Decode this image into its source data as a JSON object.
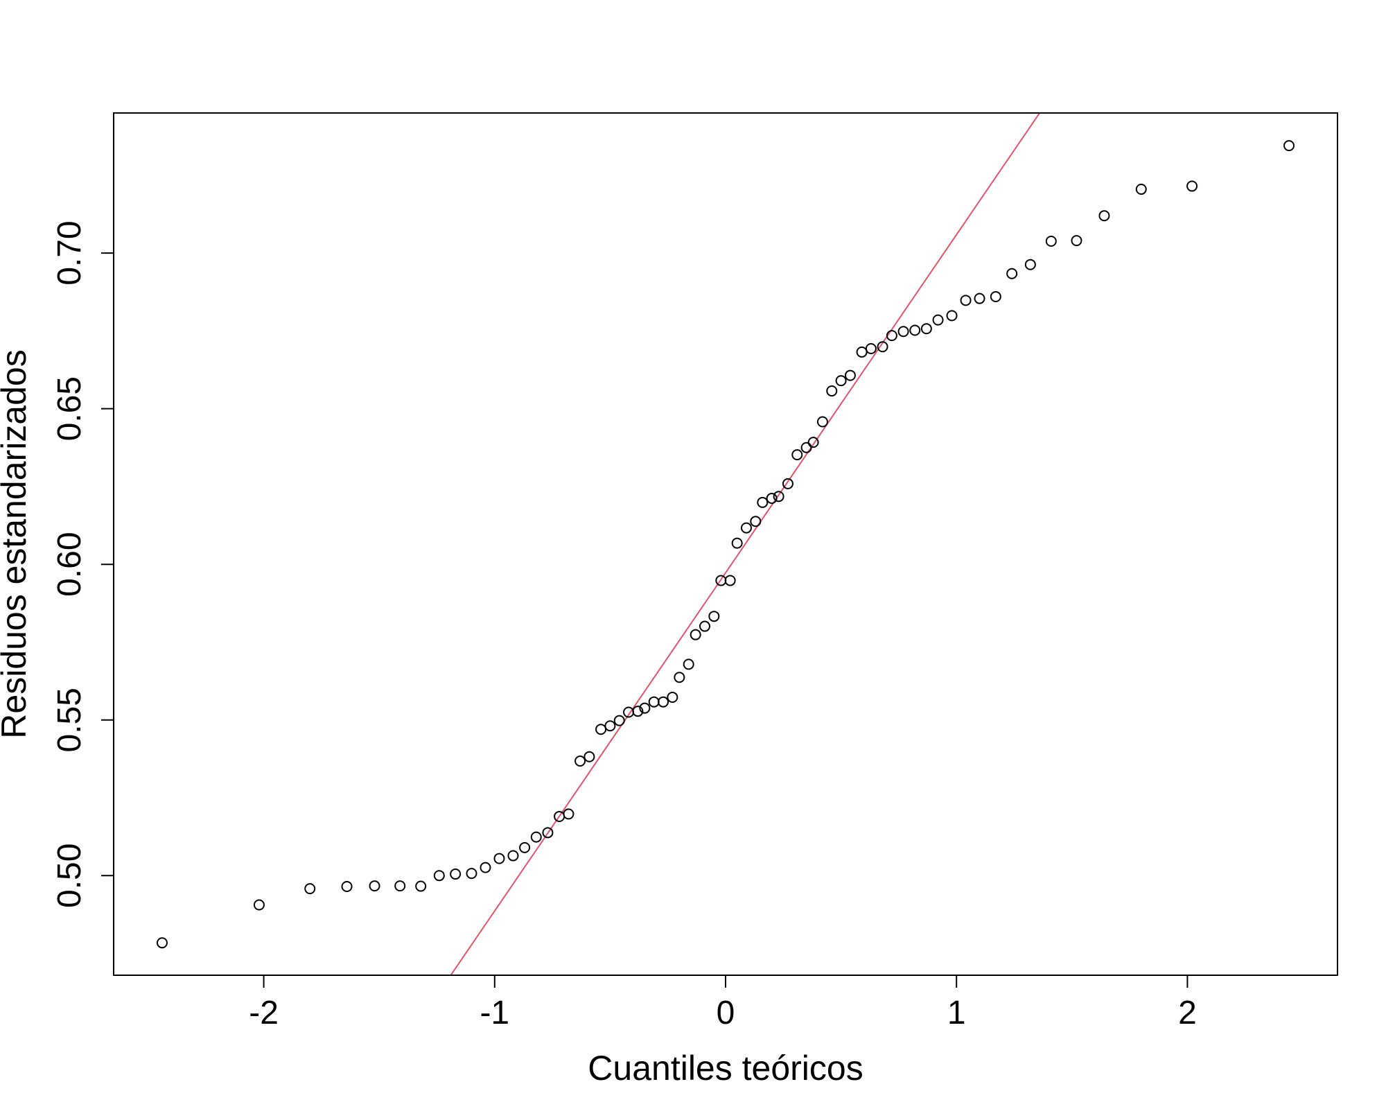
{
  "chart_data": {
    "type": "scatter",
    "title": "",
    "xlabel": "Cuantiles teóricos",
    "ylabel": "Residuos estandarizados",
    "xlim": [
      -2.65,
      2.65
    ],
    "ylim": [
      0.468,
      0.745
    ],
    "x_ticks": [
      -2,
      -1,
      0,
      1,
      2
    ],
    "x_tick_labels": [
      "-2",
      "-1",
      "0",
      "1",
      "2"
    ],
    "y_ticks": [
      0.5,
      0.55,
      0.6,
      0.65,
      0.7
    ],
    "y_tick_labels": [
      "0.50",
      "0.55",
      "0.60",
      "0.65",
      "0.70"
    ],
    "grid": false,
    "legend": false,
    "colors": {
      "points": "#000000",
      "reference_line": "#DF536B",
      "frame": "#000000"
    },
    "reference_line": {
      "x": [
        -1.19,
        1.36
      ],
      "y": [
        0.468,
        0.745
      ]
    },
    "points": [
      {
        "x": -2.44,
        "y": 0.4784
      },
      {
        "x": -2.02,
        "y": 0.4906
      },
      {
        "x": -1.8,
        "y": 0.4958
      },
      {
        "x": -1.64,
        "y": 0.4965
      },
      {
        "x": -1.52,
        "y": 0.4967
      },
      {
        "x": -1.41,
        "y": 0.4967
      },
      {
        "x": -1.32,
        "y": 0.4966
      },
      {
        "x": -1.24,
        "y": 0.5
      },
      {
        "x": -1.17,
        "y": 0.5005
      },
      {
        "x": -1.1,
        "y": 0.5007
      },
      {
        "x": -1.04,
        "y": 0.5026
      },
      {
        "x": -0.98,
        "y": 0.5055
      },
      {
        "x": -0.92,
        "y": 0.5064
      },
      {
        "x": -0.87,
        "y": 0.509
      },
      {
        "x": -0.82,
        "y": 0.5124
      },
      {
        "x": -0.77,
        "y": 0.5138
      },
      {
        "x": -0.72,
        "y": 0.519
      },
      {
        "x": -0.68,
        "y": 0.5198
      },
      {
        "x": -0.63,
        "y": 0.5368
      },
      {
        "x": -0.59,
        "y": 0.5382
      },
      {
        "x": -0.54,
        "y": 0.547
      },
      {
        "x": -0.5,
        "y": 0.5481
      },
      {
        "x": -0.46,
        "y": 0.5498
      },
      {
        "x": -0.42,
        "y": 0.5525
      },
      {
        "x": -0.38,
        "y": 0.5528
      },
      {
        "x": -0.35,
        "y": 0.5538
      },
      {
        "x": -0.31,
        "y": 0.5558
      },
      {
        "x": -0.27,
        "y": 0.5558
      },
      {
        "x": -0.23,
        "y": 0.5573
      },
      {
        "x": -0.2,
        "y": 0.5637
      },
      {
        "x": -0.16,
        "y": 0.5679
      },
      {
        "x": -0.13,
        "y": 0.5774
      },
      {
        "x": -0.09,
        "y": 0.5801
      },
      {
        "x": -0.05,
        "y": 0.5833
      },
      {
        "x": -0.02,
        "y": 0.5948
      },
      {
        "x": 0.02,
        "y": 0.5948
      },
      {
        "x": 0.05,
        "y": 0.6068
      },
      {
        "x": 0.09,
        "y": 0.6117
      },
      {
        "x": 0.13,
        "y": 0.6138
      },
      {
        "x": 0.16,
        "y": 0.6199
      },
      {
        "x": 0.2,
        "y": 0.6212
      },
      {
        "x": 0.23,
        "y": 0.6218
      },
      {
        "x": 0.27,
        "y": 0.6259
      },
      {
        "x": 0.31,
        "y": 0.6352
      },
      {
        "x": 0.35,
        "y": 0.6375
      },
      {
        "x": 0.38,
        "y": 0.6392
      },
      {
        "x": 0.42,
        "y": 0.6458
      },
      {
        "x": 0.46,
        "y": 0.6557
      },
      {
        "x": 0.5,
        "y": 0.659
      },
      {
        "x": 0.54,
        "y": 0.6607
      },
      {
        "x": 0.59,
        "y": 0.6682
      },
      {
        "x": 0.63,
        "y": 0.6693
      },
      {
        "x": 0.68,
        "y": 0.6699
      },
      {
        "x": 0.72,
        "y": 0.6735
      },
      {
        "x": 0.77,
        "y": 0.6748
      },
      {
        "x": 0.82,
        "y": 0.6752
      },
      {
        "x": 0.87,
        "y": 0.6757
      },
      {
        "x": 0.92,
        "y": 0.6785
      },
      {
        "x": 0.98,
        "y": 0.6799
      },
      {
        "x": 1.04,
        "y": 0.6848
      },
      {
        "x": 1.1,
        "y": 0.6854
      },
      {
        "x": 1.17,
        "y": 0.686
      },
      {
        "x": 1.24,
        "y": 0.6934
      },
      {
        "x": 1.32,
        "y": 0.6963
      },
      {
        "x": 1.41,
        "y": 0.7038
      },
      {
        "x": 1.52,
        "y": 0.704
      },
      {
        "x": 1.64,
        "y": 0.712
      },
      {
        "x": 1.8,
        "y": 0.7205
      },
      {
        "x": 2.02,
        "y": 0.7215
      },
      {
        "x": 2.44,
        "y": 0.7345
      }
    ]
  }
}
